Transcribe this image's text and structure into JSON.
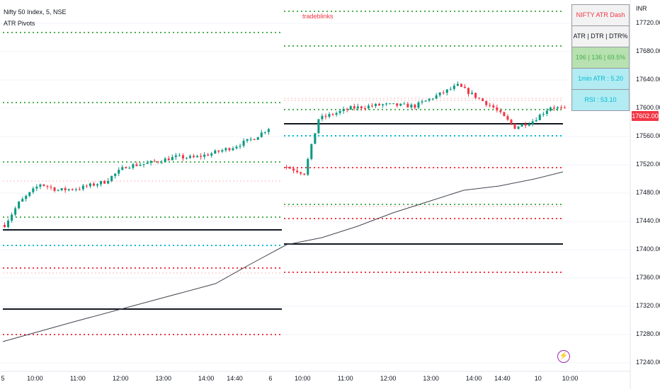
{
  "header": {
    "symbol_line": "Nifty 50 Index, 5, NSE",
    "indicator_line": "ATR Pivots"
  },
  "annotation": "tradeblinks",
  "dashboard": {
    "title": "NIFTY ATR Dash",
    "header": "ATR  | DTR |  DTR%",
    "values": "196  |  136  |  69.5%",
    "min_atr": "1min ATR : 5.20",
    "rsi": "RSI : 53.10",
    "colors": {
      "title_bg": "#f2f2f2",
      "title_fg": "#f23645",
      "header_bg": "#f2f2f2",
      "values_bg": "#b7e1b0",
      "values_fg": "#4caf50",
      "atr_bg": "#b2ebf2",
      "atr_fg": "#00bcd4",
      "rsi_bg": "#b2ebf2",
      "rsi_fg": "#00bcd4"
    }
  },
  "price_axis": {
    "unit": "INR",
    "last_price": "17602.00",
    "last_price_color": "#f23645"
  },
  "colors": {
    "up": "#089981",
    "down": "#f23645",
    "pivot": "#131722",
    "green_level": "#4caf50",
    "red_level": "#f23645",
    "blue_level": "#00bcd4",
    "ma": "#434651"
  },
  "chart_data": {
    "type": "candlestick",
    "ylim": [
      17220,
      17745
    ],
    "y_ticks": [
      "17720.00",
      "17680.00",
      "17640.00",
      "17600.00",
      "17560.00",
      "17520.00",
      "17480.00",
      "17440.00",
      "17400.00",
      "17360.00",
      "17320.00",
      "17280.00",
      "17240.00"
    ],
    "x_ticks": [
      "5",
      "10:00",
      "11:00",
      "12:00",
      "13:00",
      "14:00",
      "14:40",
      "6",
      "10:00",
      "11:00",
      "12:00",
      "13:00",
      "14:00",
      "14:40",
      "10",
      "10:00"
    ],
    "sessions": [
      {
        "label": "5",
        "path": [
          [
            17435,
            0
          ],
          [
            17466,
            4
          ],
          [
            17493,
            10
          ],
          [
            17484,
            15
          ],
          [
            17487,
            21
          ],
          [
            17496,
            28
          ],
          [
            17518,
            34
          ],
          [
            17522,
            40
          ],
          [
            17531,
            48
          ],
          [
            17530,
            53
          ],
          [
            17536,
            58
          ],
          [
            17545,
            64
          ],
          [
            17558,
            70
          ],
          [
            17572,
            74
          ]
        ],
        "pivot_levels": [
          17428,
          17316
        ],
        "green_levels": [
          17707,
          17608,
          17524,
          17446
        ],
        "red_levels": [
          17374,
          17280
        ],
        "blue_levels": [
          17406
        ],
        "faint_levels": [
          17497,
          17367
        ]
      },
      {
        "label": "6",
        "path": [
          [
            17517,
            0
          ],
          [
            17508,
            5
          ],
          [
            17585,
            9
          ],
          [
            17600,
            18
          ],
          [
            17605,
            27
          ],
          [
            17603,
            36
          ],
          [
            17632,
            48
          ],
          [
            17601,
            58
          ],
          [
            17573,
            64
          ],
          [
            17582,
            69
          ],
          [
            17602,
            74
          ],
          [
            17598,
            78
          ]
        ],
        "pivot_levels": [
          17578,
          17408
        ],
        "green_levels": [
          17737,
          17688,
          17598,
          17464
        ],
        "red_levels": [
          17516,
          17444,
          17368
        ],
        "blue_levels": [
          17561
        ],
        "faint_levels": [
          17614,
          17611,
          17461
        ]
      }
    ],
    "ma_points": [
      [
        0,
        17270
      ],
      [
        2,
        17298
      ],
      [
        4,
        17325
      ],
      [
        6,
        17352
      ],
      [
        7,
        17380
      ],
      [
        8,
        17407
      ],
      [
        9,
        17417
      ],
      [
        10,
        17433
      ],
      [
        11,
        17452
      ],
      [
        12,
        17468
      ],
      [
        13,
        17484
      ],
      [
        14,
        17490
      ],
      [
        15,
        17500
      ],
      [
        15.8,
        17510
      ]
    ]
  }
}
